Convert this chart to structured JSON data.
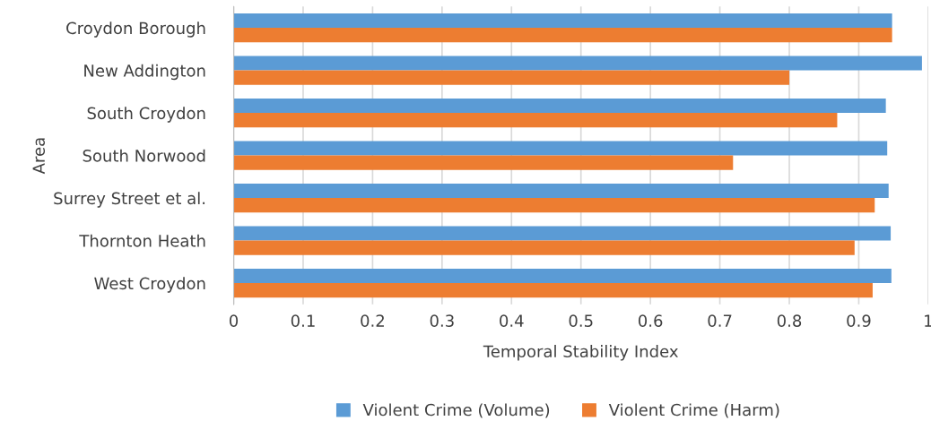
{
  "chart_data": {
    "type": "bar",
    "orientation": "horizontal",
    "xlabel": "Temporal Stability Index",
    "ylabel": "Area",
    "categories": [
      "Croydon Borough",
      "New Addington",
      "South Croydon",
      "South Norwood",
      "Surrey Street et al.",
      "Thornton Heath",
      "West Croydon"
    ],
    "series": [
      {
        "name": "Violent Crime (Volume)",
        "color": "#5b9bd5",
        "values": [
          0.948,
          0.991,
          0.939,
          0.941,
          0.943,
          0.946,
          0.947
        ]
      },
      {
        "name": "Violent Crime (Harm)",
        "color": "#ed7d31",
        "values": [
          0.948,
          0.8,
          0.869,
          0.719,
          0.923,
          0.894,
          0.92
        ]
      }
    ],
    "xlim": [
      0,
      1
    ],
    "xticks": [
      0,
      0.1,
      0.2,
      0.3,
      0.4,
      0.5,
      0.6,
      0.7,
      0.8,
      0.9,
      1
    ],
    "grid": "x",
    "legend": "bottom"
  }
}
